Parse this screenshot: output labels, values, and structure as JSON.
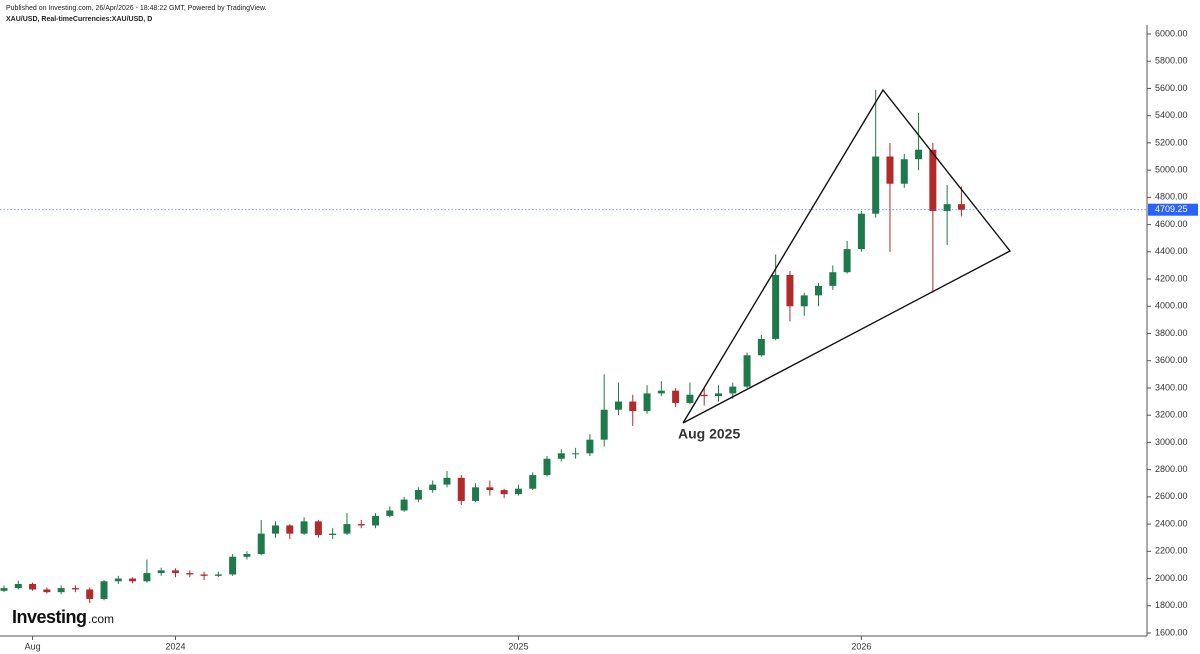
{
  "chart_data": {
    "type": "candlestick",
    "published": "Published on Investing.com, 26/Apr/2026 - 18:48:22 GMT, Powered by TradingView.",
    "title": "XAU/USD, Real-timeCurrencies:XAU/USD, D",
    "logo": {
      "brand": "Investing",
      "suffix": ".com"
    },
    "annotation": "Aug 2025",
    "categories": [
      null,
      null,
      "Aug",
      null,
      null,
      null,
      null,
      null,
      null,
      null,
      null,
      null,
      "2024",
      null,
      null,
      null,
      null,
      null,
      null,
      null,
      null,
      null,
      null,
      null,
      null,
      null,
      null,
      null,
      null,
      null,
      null,
      null,
      null,
      null,
      null,
      null,
      "2025",
      null,
      null,
      null,
      null,
      null,
      null,
      null,
      null,
      null,
      null,
      null,
      null,
      null,
      null,
      null,
      null,
      null,
      null,
      null,
      null,
      null,
      null,
      null,
      "2026",
      null,
      null,
      null,
      null,
      null,
      null,
      null
    ],
    "open": [
      1910,
      1930,
      1960,
      1920,
      1900,
      1930,
      1920,
      1850,
      1980,
      2000,
      1980,
      2040,
      2060,
      2040,
      2030,
      2020,
      2030,
      2160,
      2180,
      2330,
      2390,
      2330,
      2420,
      2320,
      2330,
      2400,
      2390,
      2460,
      2500,
      2580,
      2650,
      2690,
      2740,
      2570,
      2670,
      2650,
      2620,
      2660,
      2760,
      2880,
      2920,
      2920,
      3020,
      3240,
      3300,
      3230,
      3360,
      3380,
      3290,
      3350,
      3340,
      3360,
      3410,
      3640,
      3760,
      4230,
      4000,
      4080,
      4150,
      4250,
      4420,
      4680,
      5100,
      4900,
      5080,
      5150,
      4700,
      4750
    ],
    "high": [
      1950,
      1985,
      1970,
      1935,
      1950,
      1950,
      1935,
      1990,
      2020,
      2010,
      2140,
      2080,
      2075,
      2060,
      2050,
      2050,
      2180,
      2200,
      2430,
      2420,
      2400,
      2450,
      2430,
      2370,
      2480,
      2430,
      2480,
      2530,
      2600,
      2670,
      2720,
      2790,
      2760,
      2700,
      2720,
      2660,
      2690,
      2780,
      2900,
      2950,
      2960,
      3060,
      3500,
      3440,
      3350,
      3420,
      3450,
      3400,
      3440,
      3400,
      3420,
      3440,
      3660,
      3790,
      4380,
      4260,
      4100,
      4170,
      4300,
      4480,
      4700,
      5590,
      5200,
      5120,
      5420,
      5200,
      4890,
      4880
    ],
    "low": [
      1900,
      1920,
      1910,
      1890,
      1885,
      1900,
      1820,
      1840,
      1960,
      1965,
      1970,
      2020,
      2010,
      2010,
      1990,
      2010,
      2020,
      2140,
      2170,
      2300,
      2290,
      2320,
      2300,
      2290,
      2320,
      2370,
      2370,
      2450,
      2490,
      2560,
      2630,
      2670,
      2540,
      2560,
      2610,
      2590,
      2610,
      2650,
      2750,
      2860,
      2880,
      2900,
      2970,
      3200,
      3120,
      3210,
      3340,
      3260,
      3280,
      3270,
      3300,
      3320,
      3400,
      3630,
      3750,
      3890,
      3930,
      4000,
      4120,
      4240,
      4400,
      4650,
      4400,
      4870,
      5000,
      4100,
      4450,
      4660
    ],
    "close": [
      1930,
      1960,
      1920,
      1900,
      1930,
      1920,
      1850,
      1980,
      2000,
      1980,
      2040,
      2060,
      2040,
      2030,
      2020,
      2030,
      2160,
      2180,
      2330,
      2390,
      2330,
      2420,
      2320,
      2330,
      2400,
      2390,
      2460,
      2500,
      2580,
      2650,
      2690,
      2740,
      2570,
      2670,
      2650,
      2620,
      2660,
      2760,
      2880,
      2920,
      2920,
      3020,
      3240,
      3300,
      3230,
      3360,
      3380,
      3290,
      3350,
      3340,
      3360,
      3410,
      3640,
      3760,
      4230,
      4000,
      4080,
      4150,
      4250,
      4420,
      4680,
      5100,
      4900,
      5080,
      5150,
      4700,
      4750,
      4709.25
    ],
    "up_color": "#1e7a4a",
    "down_color": "#b22a2a",
    "last_price": {
      "value": 4709.25,
      "label": "4709.25",
      "color": "#2962ff"
    },
    "ylim": [
      1578,
      6066
    ],
    "yticks": [
      {
        "value": 1600,
        "label": "1600.00"
      },
      {
        "value": 1800,
        "label": "1800.00"
      },
      {
        "value": 2000,
        "label": "2000.00"
      },
      {
        "value": 2200,
        "label": "2200.00"
      },
      {
        "value": 2400,
        "label": "2400.00"
      },
      {
        "value": 2600,
        "label": "2600.00"
      },
      {
        "value": 2800,
        "label": "2800.00"
      },
      {
        "value": 3000,
        "label": "3000.00"
      },
      {
        "value": 3200,
        "label": "3200.00"
      },
      {
        "value": 3400,
        "label": "3400.00"
      },
      {
        "value": 3600,
        "label": "3600.00"
      },
      {
        "value": 3800,
        "label": "3800.00"
      },
      {
        "value": 4000,
        "label": "4000.00"
      },
      {
        "value": 4200,
        "label": "4200.00"
      },
      {
        "value": 4400,
        "label": "4400.00"
      },
      {
        "value": 4600,
        "label": "4600.00"
      },
      {
        "value": 4800,
        "label": "4800.00"
      },
      {
        "value": 5000,
        "label": "5000.00"
      },
      {
        "value": 5200,
        "label": "5200.00"
      },
      {
        "value": 5400,
        "label": "5400.00"
      },
      {
        "value": 5600,
        "label": "5600.00"
      },
      {
        "value": 5800,
        "label": "5800.00"
      },
      {
        "value": 6000,
        "label": "6000.00"
      }
    ],
    "grid": false
  }
}
